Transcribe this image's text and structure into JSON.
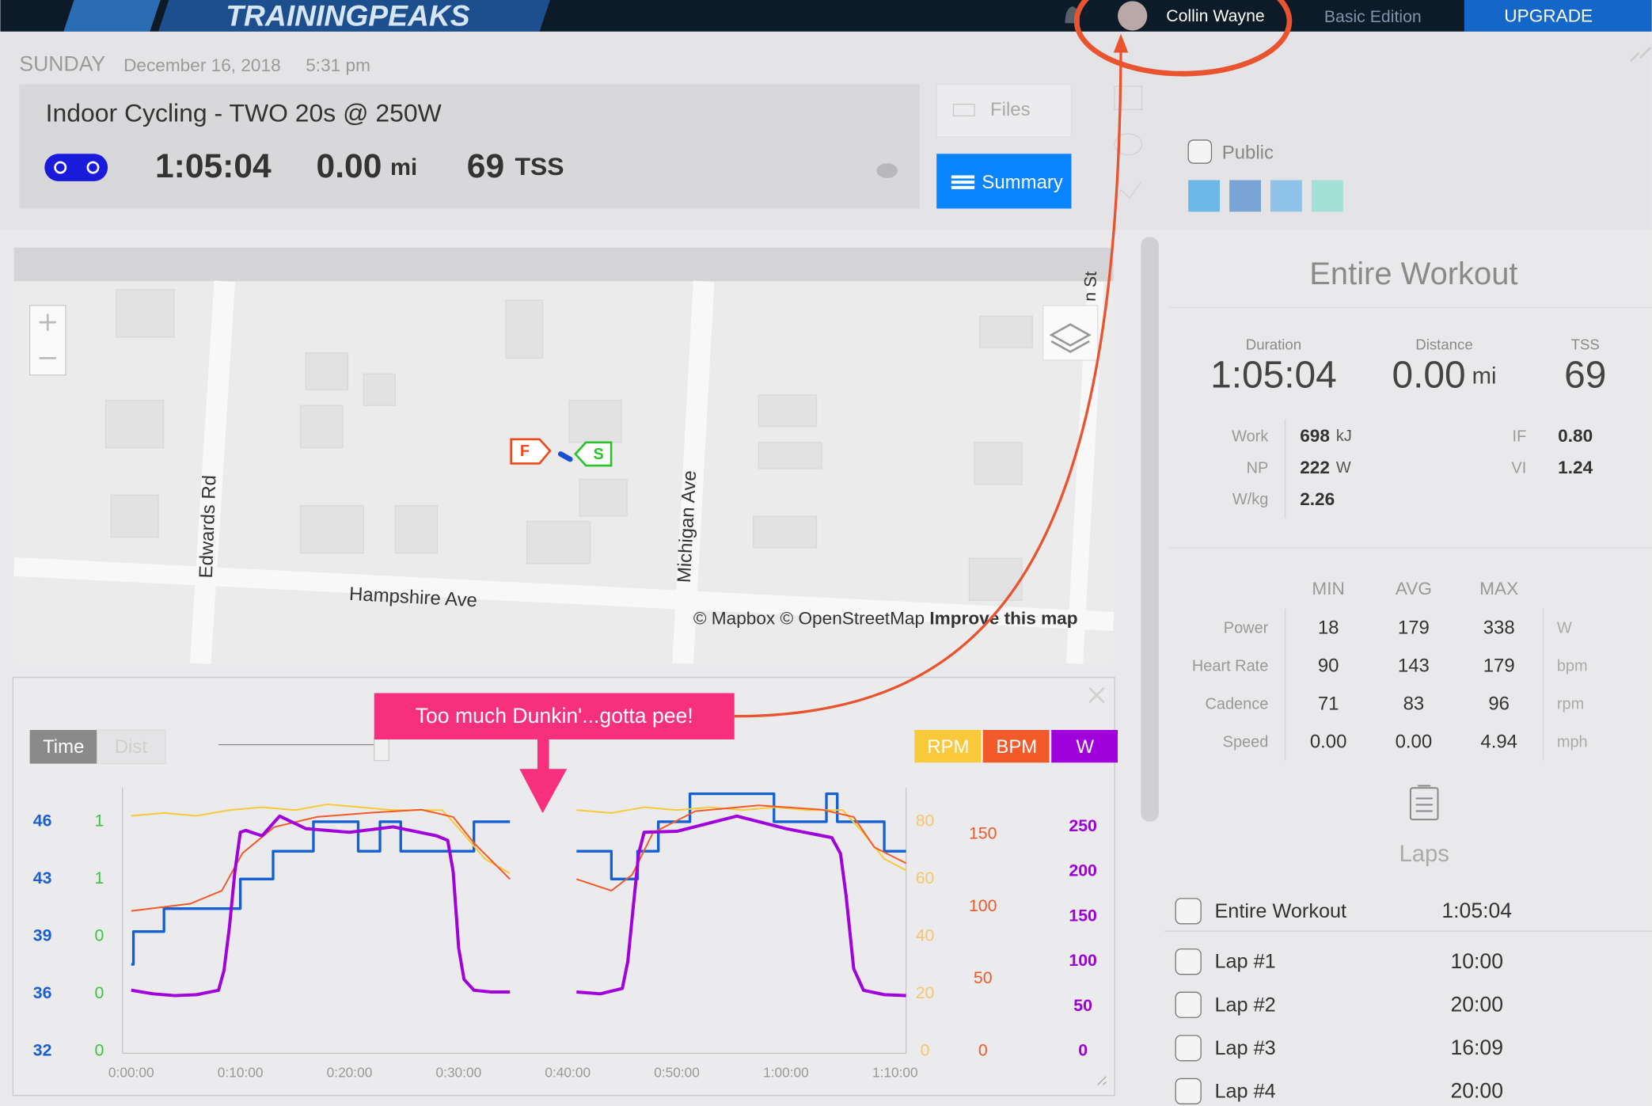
{
  "header": {
    "logo": "TRAININGPEAKS",
    "user": "Collin Wayne",
    "edition": "Basic Edition",
    "upgrade": "UPGRADE"
  },
  "workout": {
    "day": "SUNDAY",
    "date": "December 16, 2018",
    "time": "5:31 pm",
    "title": "Indoor Cycling - TWO 20s @ 250W",
    "duration": "1:05:04",
    "distance": "0.00",
    "distance_unit": "mi",
    "tss": "69",
    "tss_unit": "TSS",
    "files": "Files",
    "summary": "Summary",
    "public": "Public"
  },
  "map": {
    "streets": [
      "Edwards Rd",
      "Michigan Ave",
      "Hampshire Ave",
      "n St"
    ],
    "markers": [
      "F",
      "S"
    ],
    "attribution": "© Mapbox © OpenStreetMap ",
    "improve": "Improve this map"
  },
  "chart_panel": {
    "annotation": "Too much Dunkin'...gotta pee!",
    "toggle": [
      "Time",
      "Dist"
    ]
  },
  "chart_data": {
    "type": "line",
    "xlim": [
      -0.8,
      71.0
    ],
    "xticks": [
      {
        "value": 0,
        "label": "0:00:00"
      },
      {
        "value": 10,
        "label": "0:10:00"
      },
      {
        "value": 20,
        "label": "0:20:00"
      },
      {
        "value": 30,
        "label": "0:30:00"
      },
      {
        "value": 40,
        "label": "0:40:00"
      },
      {
        "value": 50,
        "label": "0:50:00"
      },
      {
        "value": 60,
        "label": "1:00:00"
      },
      {
        "value": 70,
        "label": "1:10:00"
      }
    ],
    "ylim": [
      31.87,
      48.06
    ],
    "yticks": [
      {
        "value": 32.0,
        "label": "32"
      },
      {
        "value": 35.5,
        "label": "36"
      },
      {
        "value": 39.0,
        "label": "39"
      },
      {
        "value": 42.5,
        "label": "43"
      },
      {
        "value": 46.0,
        "label": "46"
      }
    ],
    "y2lim": [
      0.043,
      0.967
    ],
    "y2ticks": [
      {
        "value": 0.05,
        "label": "0"
      },
      {
        "value": 0.25,
        "label": "0"
      },
      {
        "value": 0.45,
        "label": "0"
      },
      {
        "value": 0.65,
        "label": "1"
      },
      {
        "value": 0.85,
        "label": "1"
      }
    ],
    "y3lim": [
      -0.73,
      91.74
    ],
    "y3ticks": [
      0,
      20,
      40,
      60,
      80
    ],
    "y4lim": [
      -1.46,
      182.1
    ],
    "y4ticks": [
      0,
      50,
      100,
      150
    ],
    "y5lim": [
      -2.35,
      293.4
    ],
    "y5ticks": [
      0,
      50,
      100,
      150,
      200,
      250
    ],
    "axis_colors": {
      "y": "#1a5fd0",
      "y2": "#3cc43c",
      "y3": "#f6c66a",
      "y4": "#f05a28",
      "y5": "#9b00d6"
    },
    "series": [
      {
        "name": "RPM",
        "color": "#f9c93a",
        "axis": "y3",
        "x": [
          0,
          3,
          6,
          9,
          12,
          15,
          18,
          21,
          24,
          27,
          28.5,
          30.4,
          32.4,
          34.7,
          37,
          40.8,
          44,
          47,
          50,
          53,
          56,
          59,
          62,
          65.2,
          67.1,
          69,
          71
        ],
        "values": [
          82,
          83,
          82,
          84,
          85,
          84,
          86,
          85,
          84,
          84,
          84,
          76,
          67,
          62,
          null,
          84,
          83,
          85,
          84,
          85,
          84,
          85,
          84,
          84,
          76,
          67,
          63
        ]
      },
      {
        "name": "BPM",
        "color": "#f25a2a",
        "axis": "y4",
        "x": [
          0,
          5.4,
          8.3,
          10.2,
          13.1,
          17,
          22,
          26.6,
          29.5,
          31.4,
          34.7,
          37,
          40.8,
          44,
          45.9,
          47.8,
          51.7,
          57.5,
          63.3,
          66.2,
          68.1,
          71
        ],
        "values": [
          97,
          102,
          111,
          137,
          155,
          162,
          165,
          167,
          162,
          144,
          119,
          null,
          119,
          111,
          122,
          151,
          166,
          170,
          167,
          162,
          141,
          130
        ]
      },
      {
        "name": "W",
        "color": "#a000dc",
        "axis": "y5",
        "x": [
          0,
          2,
          4,
          6,
          8,
          8.5,
          9,
          9.5,
          10,
          10.5,
          12,
          13.6,
          16,
          20,
          24,
          28,
          29,
          29.5,
          30,
          30.5,
          31.4,
          33,
          34.7,
          37,
          40.8,
          43,
          45,
          45.5,
          46,
          46.5,
          47,
          50,
          55.5,
          60,
          64.2,
          65,
          65.5,
          66.2,
          67.1,
          69,
          71
        ],
        "values": [
          68,
          64,
          62,
          63,
          68,
          90,
          138,
          200,
          244,
          246,
          240,
          262,
          248,
          244,
          250,
          240,
          235,
          200,
          115,
          80,
          68,
          66,
          66,
          null,
          66,
          64,
          70,
          100,
          160,
          220,
          244,
          245,
          262,
          248,
          238,
          220,
          174,
          92,
          68,
          63,
          62
        ]
      },
      {
        "color": "#1560d0",
        "axis": "y",
        "x": [
          0,
          0.2,
          0.2,
          3,
          3,
          10,
          10,
          13,
          13,
          16.7,
          16.7,
          20.8,
          20.8,
          22.8,
          22.8,
          24.7,
          24.7,
          31.4,
          31.4,
          34.7,
          37,
          40.8,
          44,
          44,
          46.4,
          46.4,
          48.3,
          48.3,
          51.2,
          51.2,
          58.9,
          58.9,
          63.7,
          63.7,
          64.7,
          64.7,
          69,
          69,
          71
        ],
        "values": [
          37.3,
          37.3,
          39.3,
          39.3,
          40.7,
          40.7,
          42.5,
          42.5,
          44.2,
          44.2,
          46,
          46,
          44.2,
          44.2,
          46,
          46,
          44.2,
          44.2,
          46,
          46,
          null,
          44.2,
          44.2,
          42.5,
          42.5,
          44.2,
          44.2,
          46,
          46,
          47.7,
          47.7,
          46,
          46,
          47.7,
          47.7,
          46,
          46,
          44.2,
          44.2
        ]
      }
    ]
  },
  "summary": {
    "title": "Entire Workout",
    "stats": [
      {
        "label": "Duration",
        "value": "1:05:04"
      },
      {
        "label": "Distance",
        "value": "0.00",
        "unit": "mi"
      },
      {
        "label": "TSS",
        "value": "69"
      }
    ],
    "metrics": [
      {
        "label": "Work",
        "value": "698",
        "unit": "kJ"
      },
      {
        "label": "NP",
        "value": "222",
        "unit": "W"
      },
      {
        "label": "W/kg",
        "value": "2.26"
      },
      {
        "label": "IF",
        "value": "0.80"
      },
      {
        "label": "VI",
        "value": "1.24"
      }
    ],
    "columns": [
      "MIN",
      "AVG",
      "MAX"
    ],
    "rows": [
      {
        "label": "Power",
        "values": [
          "18",
          "179",
          "338"
        ],
        "unit": "W"
      },
      {
        "label": "Heart Rate",
        "values": [
          "90",
          "143",
          "179"
        ],
        "unit": "bpm"
      },
      {
        "label": "Cadence",
        "values": [
          "71",
          "83",
          "96"
        ],
        "unit": "rpm"
      },
      {
        "label": "Speed",
        "values": [
          "0.00",
          "0.00",
          "4.94"
        ],
        "unit": "mph"
      }
    ],
    "laps_title": "Laps",
    "laps": [
      {
        "name": "Entire Workout",
        "time": "1:05:04"
      },
      {
        "name": "Lap #1",
        "time": "10:00"
      },
      {
        "name": "Lap #2",
        "time": "20:00"
      },
      {
        "name": "Lap #3",
        "time": "16:09"
      },
      {
        "name": "Lap #4",
        "time": "20:00"
      }
    ]
  }
}
